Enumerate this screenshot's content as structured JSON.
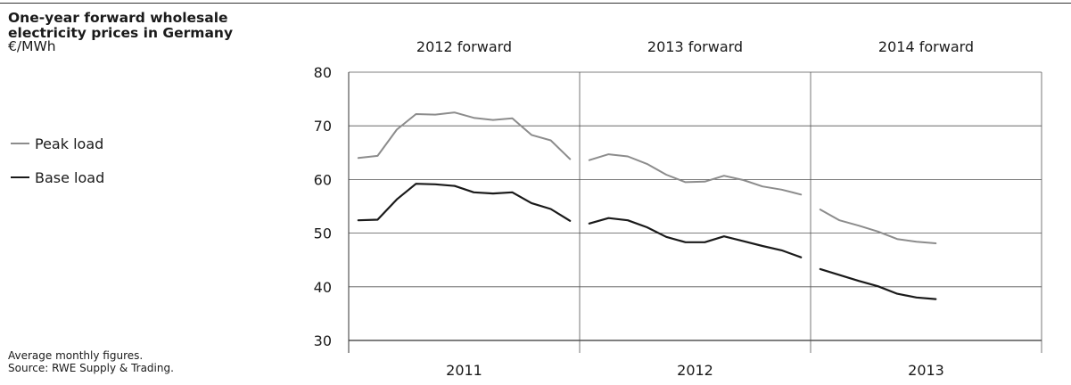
{
  "header": {
    "title": "One-year forward wholesale electricity prices in Germany",
    "unit": "€/MWh"
  },
  "legend": [
    {
      "label": "Peak load",
      "color": "#8c8c8c"
    },
    {
      "label": "Base load",
      "color": "#1a1a1a"
    }
  ],
  "footnote": {
    "line1": "Average monthly figures.",
    "line2": "Source: RWE Supply & Trading."
  },
  "chart_data": {
    "type": "line",
    "title": "One-year forward wholesale electricity prices in Germany",
    "ylabel": "€/MWh",
    "ylim": [
      30,
      80
    ],
    "yticks": [
      30,
      40,
      50,
      60,
      70,
      80
    ],
    "grid": true,
    "legend_position": "left",
    "panels": [
      {
        "title": "2012 forward",
        "year": "2011",
        "series": [
          {
            "name": "Peak load",
            "values": [
              64.0,
              64.4,
              69.3,
              72.2,
              72.1,
              72.5,
              71.5,
              71.1,
              71.4,
              68.3,
              67.3,
              63.8
            ]
          },
          {
            "name": "Base load",
            "values": [
              52.4,
              52.5,
              56.3,
              59.2,
              59.1,
              58.8,
              57.6,
              57.4,
              57.6,
              55.6,
              54.5,
              52.3
            ]
          }
        ]
      },
      {
        "title": "2013 forward",
        "year": "2012",
        "series": [
          {
            "name": "Peak load",
            "values": [
              63.6,
              64.7,
              64.3,
              62.9,
              60.9,
              59.5,
              59.6,
              60.7,
              59.9,
              58.7,
              58.1,
              57.2
            ]
          },
          {
            "name": "Base load",
            "values": [
              51.8,
              52.8,
              52.4,
              51.1,
              49.3,
              48.3,
              48.3,
              49.4,
              48.5,
              47.6,
              46.8,
              45.5
            ]
          }
        ]
      },
      {
        "title": "2014 forward",
        "year": "2013",
        "series": [
          {
            "name": "Peak load",
            "values": [
              54.4,
              52.4,
              51.4,
              50.3,
              48.9,
              48.4,
              48.1
            ]
          },
          {
            "name": "Base load",
            "values": [
              43.3,
              42.2,
              41.1,
              40.1,
              38.7,
              38.0,
              37.7
            ]
          }
        ]
      }
    ]
  }
}
